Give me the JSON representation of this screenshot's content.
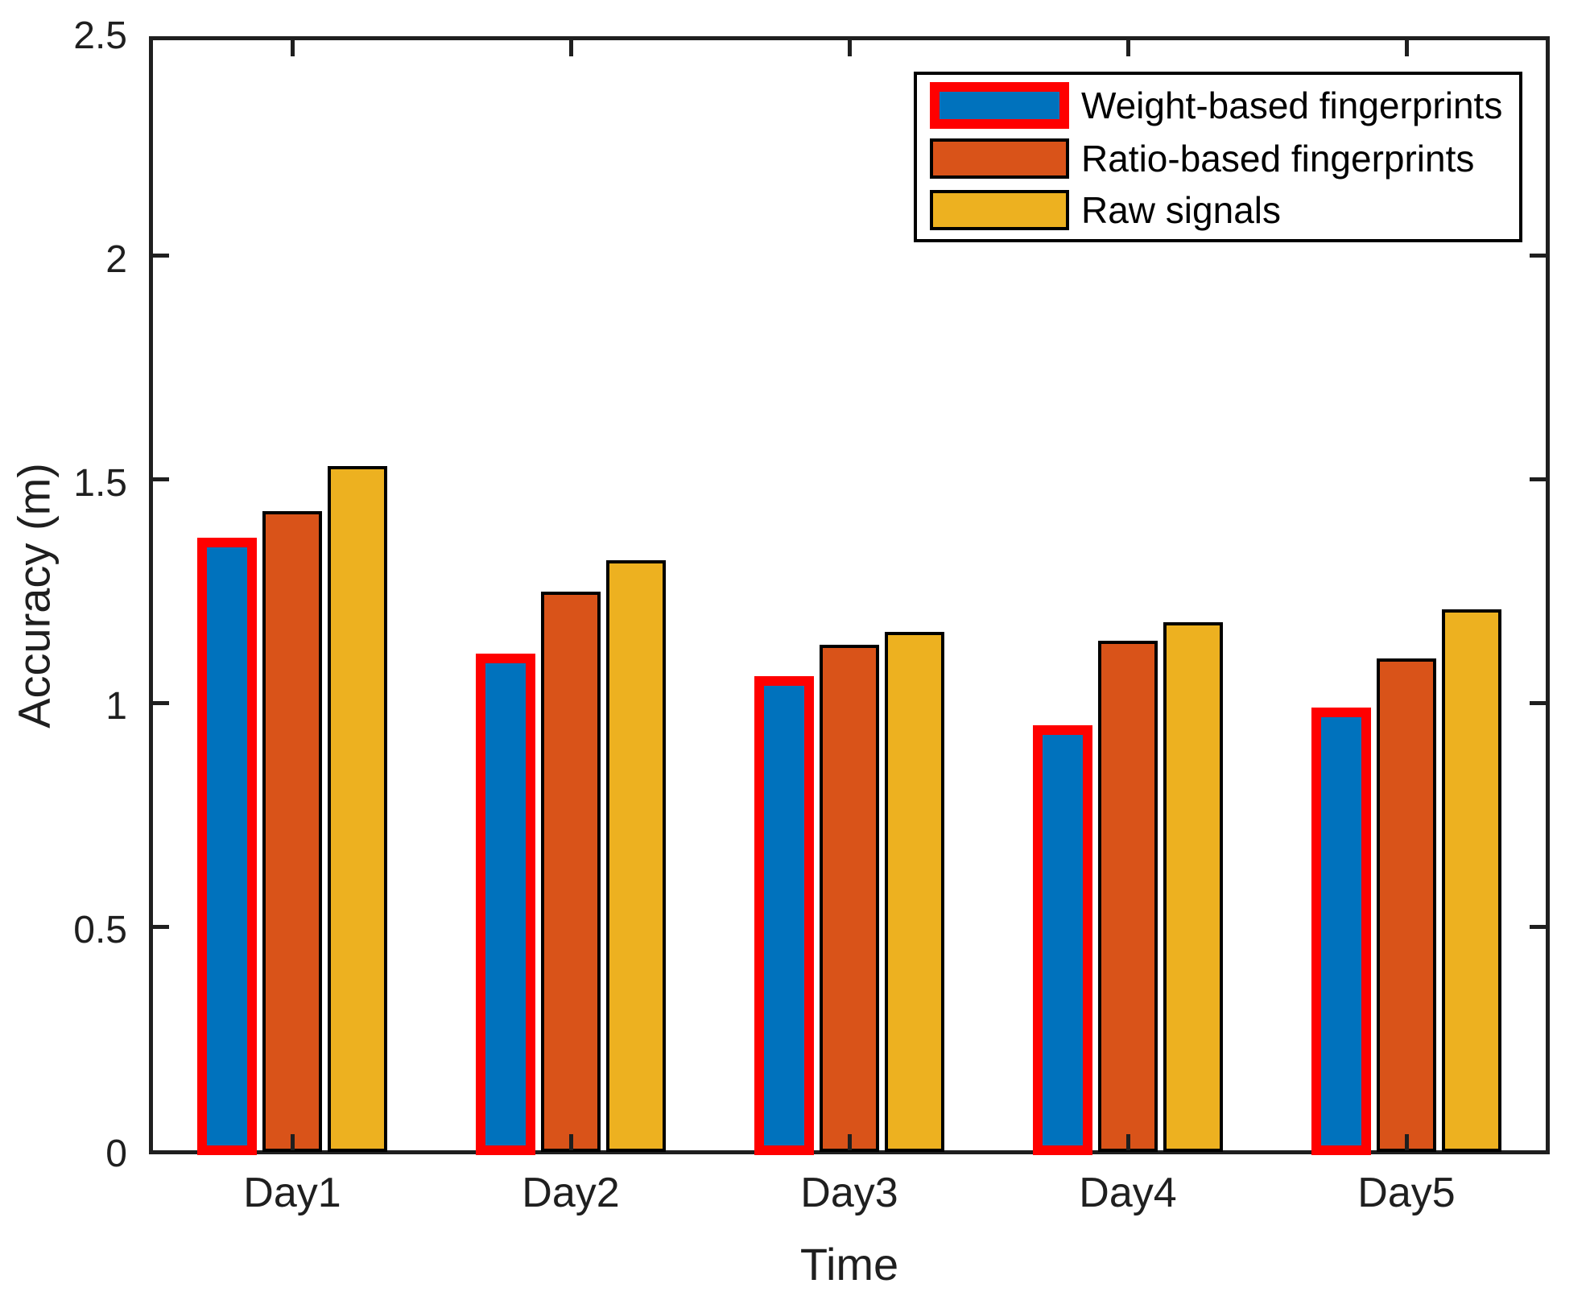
{
  "chart_data": {
    "type": "bar",
    "title": "",
    "categories": [
      "Day1",
      "Day2",
      "Day3",
      "Day4",
      "Day5"
    ],
    "series": [
      {
        "name": "Weight-based fingerprints",
        "values": [
          1.37,
          1.11,
          1.06,
          0.95,
          0.99
        ],
        "fill": "#0072BD",
        "edge": "#FF0000",
        "edge_width": 12
      },
      {
        "name": "Ratio-based fingerprints",
        "values": [
          1.43,
          1.25,
          1.13,
          1.14,
          1.1
        ],
        "fill": "#D95319",
        "edge": "#000000",
        "edge_width": 4
      },
      {
        "name": "Raw signals",
        "values": [
          1.53,
          1.32,
          1.16,
          1.18,
          1.21
        ],
        "fill": "#EDB120",
        "edge": "#000000",
        "edge_width": 4
      }
    ],
    "xlabel": "Time",
    "ylabel": "Accuracy (m)",
    "ylim": [
      0,
      2.5
    ],
    "yticks": [
      0,
      0.5,
      1,
      1.5,
      2,
      2.5
    ],
    "ytick_labels": [
      "0",
      "0.5",
      "1",
      "1.5",
      "2",
      "2.5"
    ],
    "legend_position": "top-right",
    "grid": false,
    "axis_color": "#1f1f1f",
    "background_color": "#ffffff"
  }
}
